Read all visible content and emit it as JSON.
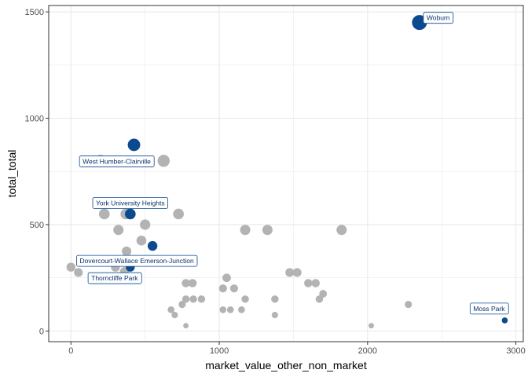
{
  "chart_data": {
    "type": "scatter",
    "xlabel": "market_value_other_non_market",
    "ylabel": "total_total",
    "xlim": [
      -150,
      3050
    ],
    "ylim": [
      -50,
      1530
    ],
    "x_ticks": [
      0,
      1000,
      2000,
      3000
    ],
    "y_ticks": [
      0,
      500,
      1000,
      1500
    ],
    "x_tick_labels": [
      "0",
      "1000",
      "2000",
      "3000"
    ],
    "y_tick_labels": [
      "0",
      "500",
      "1000",
      "1500"
    ],
    "grid": true,
    "legend": "none",
    "colors": {
      "other": "#b3b3b3",
      "highlight": "#0b4a8f",
      "label_border": "#0b4a8f",
      "label_text": "#08306b",
      "grid": "#ebebeb"
    },
    "series": [
      {
        "role": "other",
        "points": [
          {
            "x": 200,
            "y": 800
          },
          {
            "x": 625,
            "y": 800
          },
          {
            "x": 225,
            "y": 550
          },
          {
            "x": 370,
            "y": 550
          },
          {
            "x": 725,
            "y": 550
          },
          {
            "x": 320,
            "y": 475
          },
          {
            "x": 500,
            "y": 500
          },
          {
            "x": 475,
            "y": 425
          },
          {
            "x": 1175,
            "y": 475
          },
          {
            "x": 1325,
            "y": 475
          },
          {
            "x": 1825,
            "y": 475
          },
          {
            "x": 375,
            "y": 375
          },
          {
            "x": 0,
            "y": 300
          },
          {
            "x": 150,
            "y": 325
          },
          {
            "x": 300,
            "y": 300
          },
          {
            "x": 675,
            "y": 330
          },
          {
            "x": 770,
            "y": 330
          },
          {
            "x": 50,
            "y": 275
          },
          {
            "x": 360,
            "y": 280
          },
          {
            "x": 775,
            "y": 225
          },
          {
            "x": 820,
            "y": 225
          },
          {
            "x": 1050,
            "y": 250
          },
          {
            "x": 1025,
            "y": 200
          },
          {
            "x": 1100,
            "y": 200
          },
          {
            "x": 1175,
            "y": 150
          },
          {
            "x": 775,
            "y": 150
          },
          {
            "x": 825,
            "y": 150
          },
          {
            "x": 880,
            "y": 150
          },
          {
            "x": 750,
            "y": 125
          },
          {
            "x": 1375,
            "y": 150
          },
          {
            "x": 1475,
            "y": 275
          },
          {
            "x": 1525,
            "y": 275
          },
          {
            "x": 1600,
            "y": 225
          },
          {
            "x": 1650,
            "y": 225
          },
          {
            "x": 1675,
            "y": 150
          },
          {
            "x": 1700,
            "y": 175
          },
          {
            "x": 675,
            "y": 100
          },
          {
            "x": 700,
            "y": 75
          },
          {
            "x": 1025,
            "y": 100
          },
          {
            "x": 1075,
            "y": 100
          },
          {
            "x": 1150,
            "y": 100
          },
          {
            "x": 1375,
            "y": 75
          },
          {
            "x": 775,
            "y": 25
          },
          {
            "x": 2275,
            "y": 125
          },
          {
            "x": 2025,
            "y": 25
          }
        ]
      },
      {
        "role": "highlight",
        "points": [
          {
            "x": 2350,
            "y": 1450,
            "label": "Woburn"
          },
          {
            "x": 425,
            "y": 875,
            "label": "West Humber-Clairville"
          },
          {
            "x": 400,
            "y": 550,
            "label": "York University Heights"
          },
          {
            "x": 550,
            "y": 400,
            "label": "Dovercourt-Wallace Emerson-Junction"
          },
          {
            "x": 400,
            "y": 300,
            "label": "Thorncliffe Park"
          },
          {
            "x": 2925,
            "y": 50,
            "label": "Moss Park"
          }
        ]
      }
    ]
  }
}
